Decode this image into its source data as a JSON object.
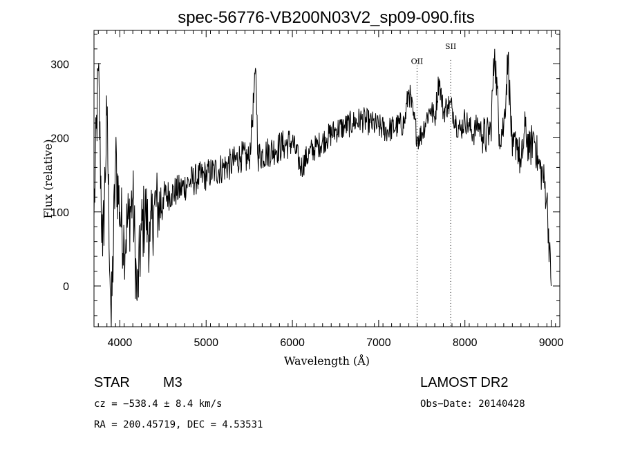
{
  "chart_data": {
    "type": "line",
    "title": "spec-56776-VB200N03V2_sp09-090.fits",
    "xlabel": "Wavelength (Å)",
    "ylabel": "Flux (relative)",
    "xlim": [
      3700,
      9100
    ],
    "ylim": [
      -55,
      345
    ],
    "xticks": [
      4000,
      5000,
      6000,
      7000,
      8000,
      9000
    ],
    "yticks": [
      0,
      100,
      200,
      300
    ],
    "grid": false,
    "series": [
      {
        "x": [
          3700,
          3750,
          3800,
          3850,
          3900,
          3950,
          4000,
          4050,
          4100,
          4150,
          4200,
          4250,
          4300,
          4350,
          4400,
          4450,
          4500,
          4600,
          4700,
          4800,
          4900,
          5000,
          5100,
          5200,
          5300,
          5400,
          5500,
          5577,
          5600,
          5700,
          5800,
          5900,
          6000,
          6100,
          6200,
          6300,
          6400,
          6500,
          6600,
          6700,
          6800,
          6900,
          7000,
          7100,
          7200,
          7300,
          7350,
          7400,
          7450,
          7500,
          7550,
          7600,
          7650,
          7700,
          7750,
          7800,
          7850,
          7900,
          7950,
          8000,
          8050,
          8100,
          8150,
          8200,
          8250,
          8300,
          8345,
          8400,
          8450,
          8500,
          8550,
          8600,
          8650,
          8700,
          8750,
          8800,
          8850,
          8900,
          8950,
          9000
        ],
        "values": [
          95,
          290,
          40,
          230,
          -55,
          170,
          100,
          60,
          90,
          120,
          -20,
          75,
          100,
          60,
          110,
          105,
          120,
          125,
          130,
          140,
          145,
          150,
          155,
          160,
          165,
          175,
          170,
          290,
          175,
          180,
          185,
          190,
          195,
          160,
          180,
          190,
          200,
          210,
          215,
          220,
          225,
          220,
          215,
          210,
          215,
          220,
          265,
          230,
          200,
          205,
          225,
          240,
          225,
          280,
          235,
          245,
          240,
          220,
          210,
          225,
          215,
          205,
          220,
          205,
          200,
          210,
          320,
          205,
          215,
          310,
          175,
          200,
          160,
          215,
          180,
          205,
          165,
          150,
          120,
          0
        ]
      }
    ],
    "annotations": [
      {
        "label": "OII",
        "x": 7445,
        "y": 300
      },
      {
        "label": "SII",
        "x": 7835,
        "y": 320
      }
    ]
  },
  "info": {
    "object_class": "STAR",
    "subclass": "M3",
    "survey": "LAMOST DR2",
    "cz": "cz = −538.4 ± 8.4 km/s",
    "obs_date": "Obs−Date: 20140428",
    "coords": "RA = 200.45719, DEC =   4.53531"
  }
}
